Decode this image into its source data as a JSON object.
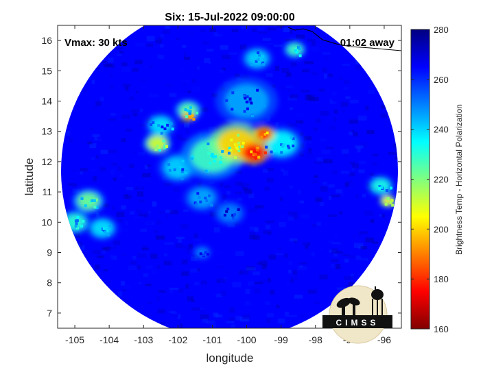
{
  "chart_data": {
    "type": "heatmap",
    "title": "Six: 15-Jul-2022 09:00:00",
    "xlabel": "longitude",
    "ylabel": "latitude",
    "xlim": [
      -105.5,
      -95.5
    ],
    "ylim": [
      6.5,
      16.5
    ],
    "xticks": [
      -105,
      -104,
      -103,
      -102,
      -101,
      -100,
      -99,
      -98,
      -97,
      -96
    ],
    "yticks": [
      7,
      8,
      9,
      10,
      11,
      12,
      13,
      14,
      15,
      16
    ],
    "annotations": {
      "vmax": "Vmax: 30 kts",
      "time_away": "01:02 away"
    },
    "swath": {
      "center_lon": -100.5,
      "center_lat": 11.7,
      "radius_deg": 4.9
    },
    "colorbar": {
      "label": "Brightness Temp - Horizontal Polarization",
      "range": [
        160,
        280
      ],
      "ticks": [
        160,
        180,
        200,
        220,
        240,
        260,
        280
      ],
      "colormap": "jet"
    },
    "background_temp": 265,
    "cold_features": [
      {
        "lon": -99.8,
        "lat": 12.3,
        "temp": 175,
        "r": 0.35
      },
      {
        "lon": -99.5,
        "lat": 12.9,
        "temp": 182,
        "r": 0.25
      },
      {
        "lon": -100.3,
        "lat": 12.6,
        "temp": 200,
        "r": 0.6
      },
      {
        "lon": -101.0,
        "lat": 12.2,
        "temp": 228,
        "r": 0.7
      },
      {
        "lon": -99.0,
        "lat": 12.6,
        "temp": 235,
        "r": 0.5
      },
      {
        "lon": -101.7,
        "lat": 13.5,
        "temp": 190,
        "r": 0.15
      },
      {
        "lon": -101.7,
        "lat": 13.7,
        "temp": 225,
        "r": 0.3
      },
      {
        "lon": -102.6,
        "lat": 12.6,
        "temp": 210,
        "r": 0.3
      },
      {
        "lon": -102.5,
        "lat": 13.2,
        "temp": 238,
        "r": 0.35
      },
      {
        "lon": -102.0,
        "lat": 11.8,
        "temp": 240,
        "r": 0.45
      },
      {
        "lon": -100.0,
        "lat": 14.0,
        "temp": 245,
        "r": 0.7
      },
      {
        "lon": -104.6,
        "lat": 10.7,
        "temp": 222,
        "r": 0.35
      },
      {
        "lon": -105.0,
        "lat": 10.0,
        "temp": 230,
        "r": 0.35
      },
      {
        "lon": -104.2,
        "lat": 9.8,
        "temp": 238,
        "r": 0.35
      },
      {
        "lon": -101.3,
        "lat": 10.8,
        "temp": 245,
        "r": 0.4
      },
      {
        "lon": -98.6,
        "lat": 15.7,
        "temp": 228,
        "r": 0.25
      },
      {
        "lon": -99.7,
        "lat": 15.4,
        "temp": 240,
        "r": 0.35
      },
      {
        "lon": -95.9,
        "lat": 10.7,
        "temp": 205,
        "r": 0.18
      },
      {
        "lon": -96.1,
        "lat": 11.2,
        "temp": 232,
        "r": 0.3
      },
      {
        "lon": -101.3,
        "lat": 9.0,
        "temp": 250,
        "r": 0.2
      },
      {
        "lon": -100.5,
        "lat": 10.3,
        "temp": 250,
        "r": 0.35
      }
    ]
  },
  "logo": {
    "text": "CIMSS"
  }
}
